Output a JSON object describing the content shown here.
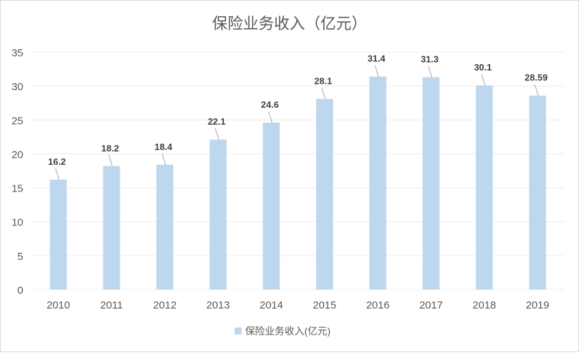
{
  "chart_data": {
    "type": "bar",
    "title": "保险业务收入（亿元）",
    "xlabel": "",
    "ylabel": "",
    "categories": [
      "2010",
      "2011",
      "2012",
      "2013",
      "2014",
      "2015",
      "2016",
      "2017",
      "2018",
      "2019"
    ],
    "series": [
      {
        "name": "保险业务收入(亿元)",
        "values": [
          16.2,
          18.2,
          18.4,
          22.1,
          24.6,
          28.1,
          31.4,
          31.3,
          30.1,
          28.59
        ],
        "labels": [
          "16.2",
          "18.2",
          "18.4",
          "22.1",
          "24.6",
          "28.1",
          "31.4",
          "31.3",
          "30.1",
          "28.59"
        ],
        "color": "#bdd7ee"
      }
    ],
    "ylim": [
      0,
      35
    ],
    "yticks": [
      "0",
      "5",
      "10",
      "15",
      "20",
      "25",
      "30",
      "35"
    ],
    "grid": true,
    "legend": "bottom"
  }
}
